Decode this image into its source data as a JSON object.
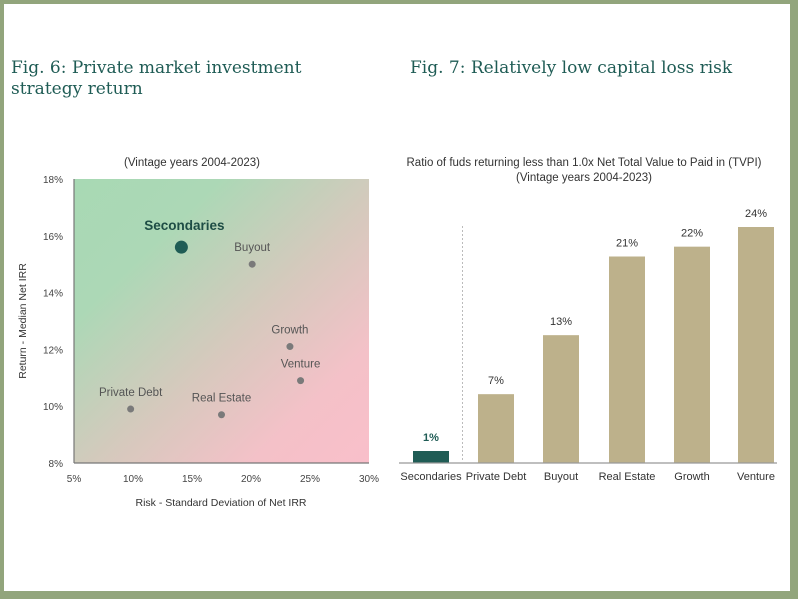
{
  "figures": {
    "fig6_title": "Fig. 6: Private market investment strategy return",
    "fig7_title": "Fig. 7: Relatively low capital loss risk"
  },
  "colors": {
    "frame": "#92a57c",
    "title_text": "#1f5c55",
    "highlight": "#1f5c55",
    "bar": "#bdb18b",
    "point": "#7a7a7a",
    "gradient_green": "#a8d9b4",
    "gradient_pink": "#f7bfc9"
  },
  "chart_data": [
    {
      "type": "scatter",
      "title": "(Vintage years 2004-2023)",
      "xlabel": "Risk - Standard Deviation of Net IRR",
      "ylabel": "Return - Median Net IRR",
      "xlim": [
        5,
        30
      ],
      "ylim": [
        8,
        18
      ],
      "x_ticks": [
        5,
        10,
        15,
        20,
        25,
        30
      ],
      "y_ticks": [
        8,
        10,
        12,
        14,
        16,
        18
      ],
      "x_tick_labels": [
        "5%",
        "10%",
        "15%",
        "20%",
        "25%",
        "30%"
      ],
      "y_tick_labels": [
        "8%",
        "10%",
        "12%",
        "14%",
        "16%",
        "18%"
      ],
      "grid": false,
      "background": "gradient green (top-left) to pink (bottom-right)",
      "points": [
        {
          "name": "Secondaries",
          "x": 14.1,
          "y": 15.6,
          "highlight": true
        },
        {
          "name": "Buyout",
          "x": 20.1,
          "y": 15.0,
          "highlight": false
        },
        {
          "name": "Growth",
          "x": 23.3,
          "y": 12.1,
          "highlight": false
        },
        {
          "name": "Venture",
          "x": 24.2,
          "y": 10.9,
          "highlight": false
        },
        {
          "name": "Private Debt",
          "x": 9.8,
          "y": 9.9,
          "highlight": false
        },
        {
          "name": "Real Estate",
          "x": 17.5,
          "y": 9.7,
          "highlight": false
        }
      ]
    },
    {
      "type": "bar",
      "title": "Ratio of fuds returning less than 1.0x Net Total Value to Paid in (TVPI)",
      "subtitle": "(Vintage years 2004-2023)",
      "xlabel": "",
      "ylabel": "",
      "ylim": [
        0,
        24
      ],
      "categories": [
        "Secondaries",
        "Private Debt",
        "Buyout",
        "Real Estate",
        "Growth",
        "Venture"
      ],
      "values": [
        1,
        7,
        13,
        21,
        22,
        24
      ],
      "value_labels": [
        "1%",
        "7%",
        "13%",
        "21%",
        "22%",
        "24%"
      ],
      "highlight_index": 0,
      "separator_after_index": 0,
      "grid": false
    }
  ]
}
